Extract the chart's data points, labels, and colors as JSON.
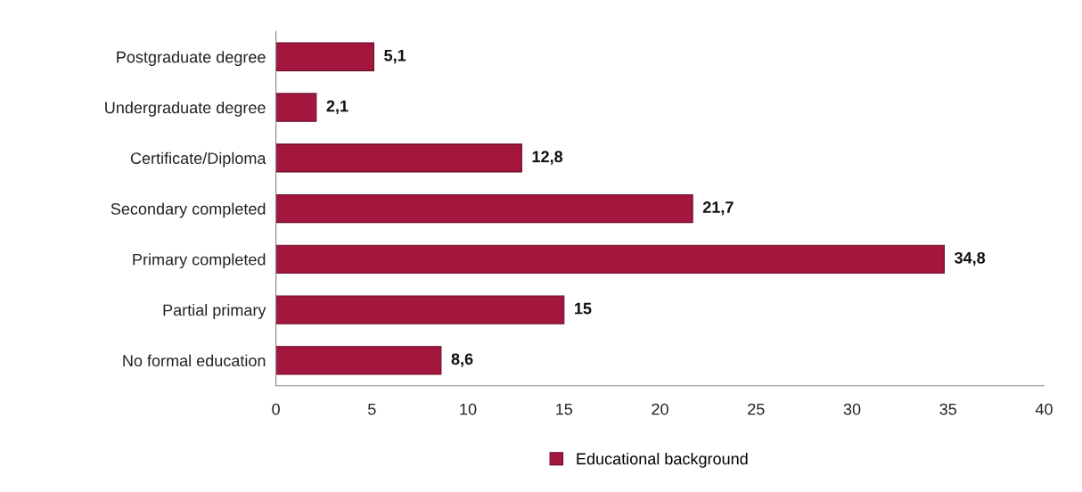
{
  "chart_data": {
    "type": "bar",
    "orientation": "horizontal",
    "categories": [
      "Postgraduate degree",
      "Undergraduate degree",
      "Certificate/Diploma",
      "Secondary completed",
      "Primary completed",
      "Partial primary",
      "No formal education"
    ],
    "series": [
      {
        "name": "Educational background",
        "color": "#a3173f",
        "values": [
          5.1,
          2.1,
          12.8,
          21.7,
          34.8,
          15,
          8.6
        ],
        "value_labels": [
          "5,1",
          "2,1",
          "12,8",
          "21,7",
          "34,8",
          "15",
          "8,6"
        ]
      }
    ],
    "xlim": [
      0,
      40
    ],
    "xticks": [
      0,
      5,
      10,
      15,
      20,
      25,
      30,
      35,
      40
    ],
    "grid": false,
    "legend": "bottom"
  }
}
